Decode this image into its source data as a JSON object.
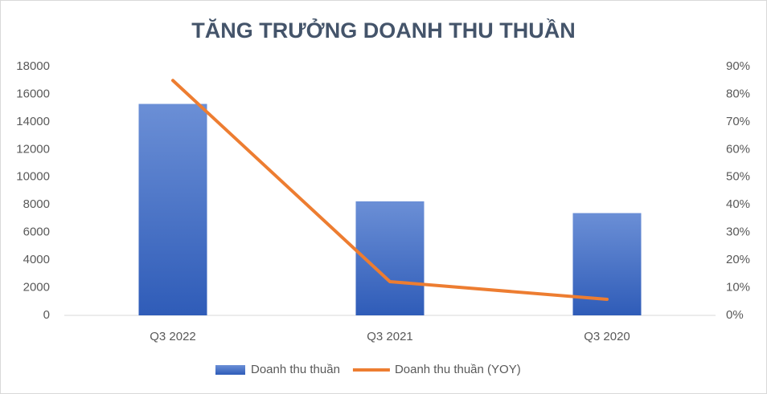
{
  "chart_data": {
    "type": "bar",
    "title": "TĂNG TRƯỞNG DOANH THU THUẦN",
    "categories": [
      "Q3 2022",
      "Q3 2021",
      "Q3 2020"
    ],
    "series": [
      {
        "name": "Doanh thu thuần",
        "type": "bar",
        "color": "#4472c4",
        "values": [
          15300,
          8250,
          7400
        ]
      },
      {
        "name": "Doanh thu thuần (YOY)",
        "type": "line",
        "axis": "y2",
        "color": "#ed7d31",
        "values": [
          85,
          12.2,
          5.8
        ]
      }
    ],
    "ylim": [
      0,
      18000
    ],
    "yticks": [
      0,
      2000,
      4000,
      6000,
      8000,
      10000,
      12000,
      14000,
      16000,
      18000
    ],
    "y2lim": [
      0,
      90
    ],
    "y2ticks": [
      {
        "value": 0,
        "label": "0%"
      },
      {
        "value": 10,
        "label": "10%"
      },
      {
        "value": 20,
        "label": "20%"
      },
      {
        "value": 30,
        "label": "30%"
      },
      {
        "value": 40,
        "label": "40%"
      },
      {
        "value": 50,
        "label": "50%"
      },
      {
        "value": 60,
        "label": "60%"
      },
      {
        "value": 70,
        "label": "70%"
      },
      {
        "value": 80,
        "label": "80%"
      },
      {
        "value": 90,
        "label": "90%"
      }
    ],
    "grid": false,
    "legend": "bottom"
  }
}
